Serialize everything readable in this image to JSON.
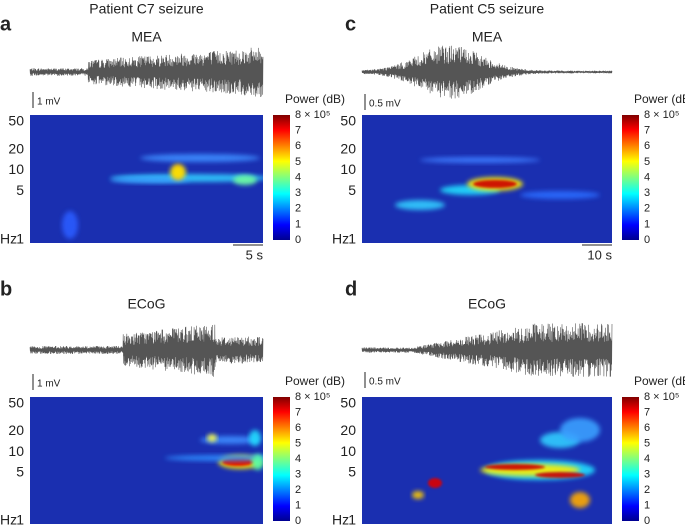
{
  "figure": {
    "panels": [
      {
        "letter": "a",
        "title": "Patient C7 seizure",
        "signal": "MEA",
        "voltage_scale": "1 mV",
        "colorbar_title": "Power (dB)",
        "colorbar_max": "8 × 10⁵",
        "colorbar_ticks": [
          7,
          6,
          5,
          4,
          3,
          2,
          1,
          0
        ],
        "y_unit": "Hz",
        "y_ticks": [
          50,
          20,
          10,
          5,
          1
        ],
        "time_scale": "5 s"
      },
      {
        "letter": "b",
        "signal": "ECoG",
        "voltage_scale": "1 mV",
        "colorbar_title": "Power (dB)",
        "colorbar_max": "8 × 10⁵",
        "colorbar_ticks": [
          7,
          6,
          5,
          4,
          3,
          2,
          1,
          0
        ],
        "y_unit": "Hz",
        "y_ticks": [
          50,
          20,
          10,
          5,
          1
        ]
      },
      {
        "letter": "c",
        "title": "Patient C5 seizure",
        "signal": "MEA",
        "voltage_scale": "0.5 mV",
        "colorbar_title": "Power (dB)",
        "colorbar_max": "8 × 10⁵",
        "colorbar_ticks": [
          7,
          6,
          5,
          4,
          3,
          2,
          1,
          0
        ],
        "y_unit": "Hz",
        "y_ticks": [
          50,
          20,
          10,
          5,
          1
        ],
        "time_scale": "10 s"
      },
      {
        "letter": "d",
        "signal": "ECoG",
        "voltage_scale": "0.5 mV",
        "colorbar_title": "Power (dB)",
        "colorbar_max": "8 × 10⁵",
        "colorbar_ticks": [
          7,
          6,
          5,
          4,
          3,
          2,
          1,
          0
        ],
        "y_unit": "Hz",
        "y_ticks": [
          50,
          20,
          10,
          5,
          1
        ]
      }
    ]
  }
}
